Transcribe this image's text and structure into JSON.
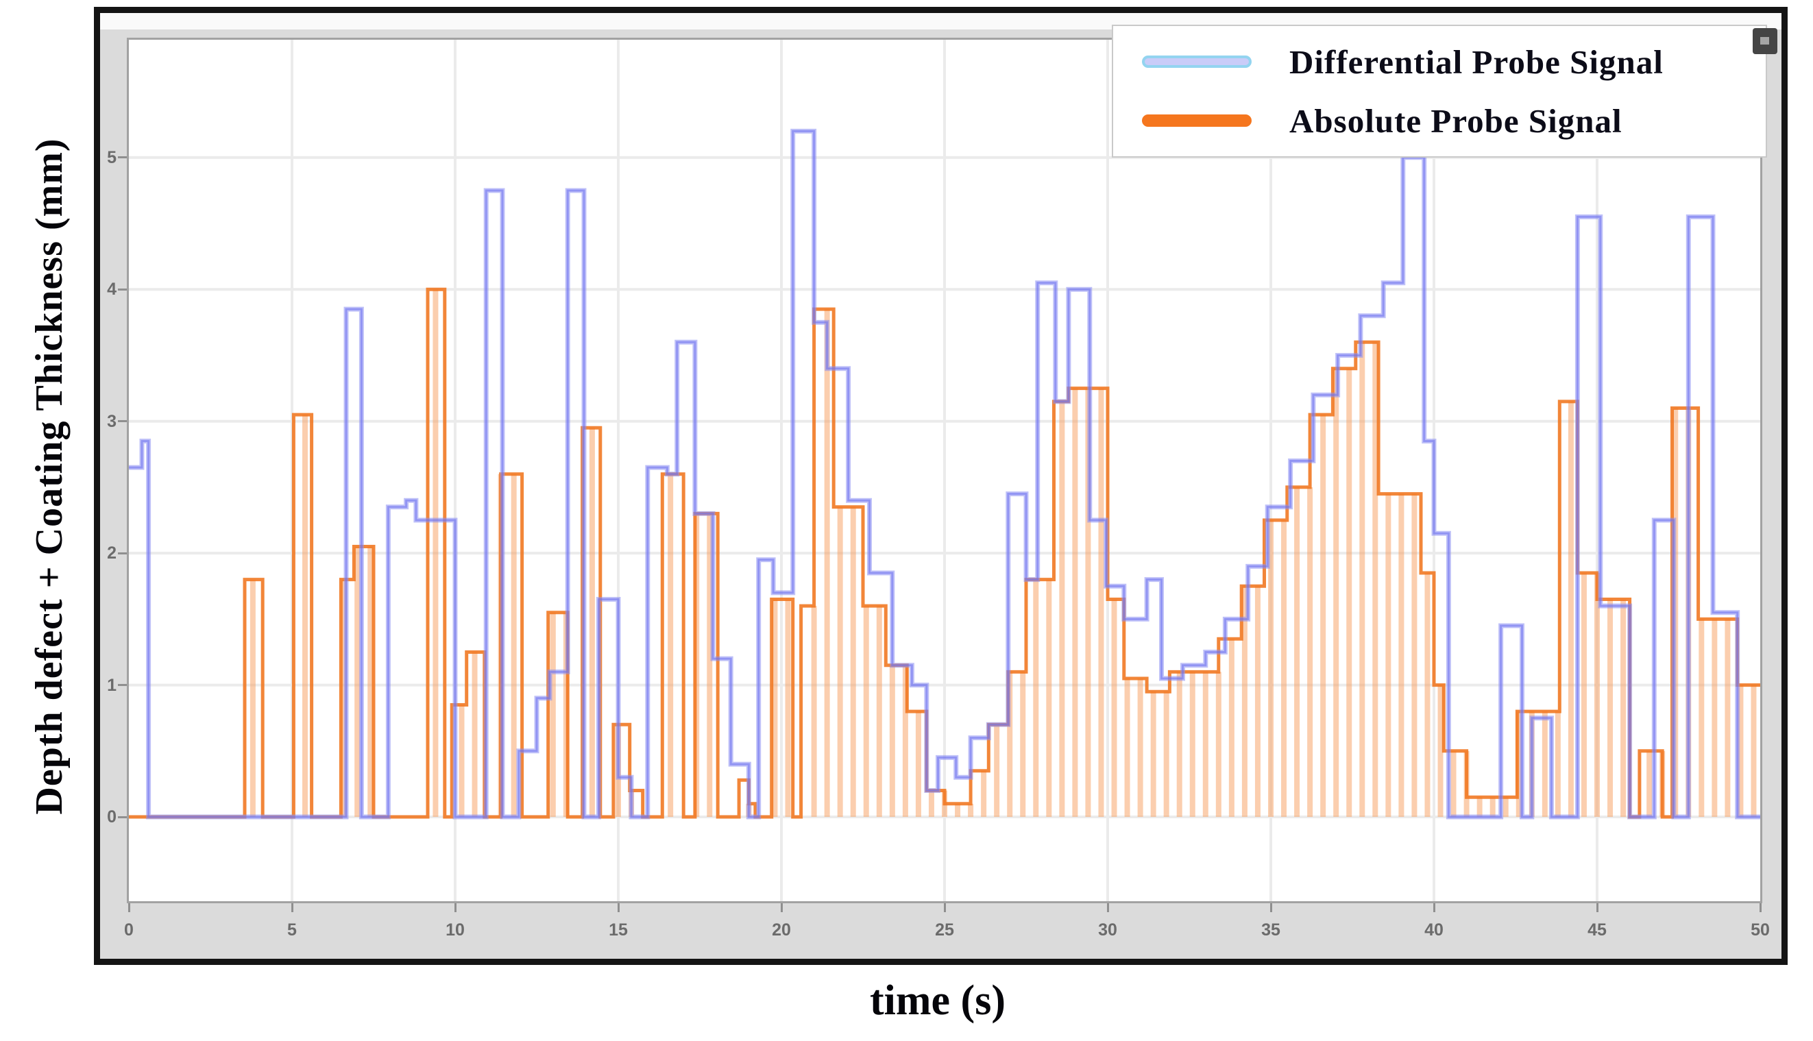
{
  "figure": {
    "window_icon": "resize-grip-icon",
    "background": "#dbdbdb",
    "border_color": "#141414",
    "plot_background": "#ffffff",
    "frame_color": "#a2a2a2",
    "grid_color": "#ebebeb",
    "tick_color": "#8f8f8f",
    "tick_text_color": "#6b6b6b"
  },
  "legend": {
    "position": "top-right",
    "entries": [
      {
        "label": "Differential Probe Signal",
        "swatch": "light-blue-line-swatch",
        "color": "#9aa0f2"
      },
      {
        "label": "Absolute Probe Signal",
        "swatch": "orange-line-swatch",
        "color": "#f5761e"
      }
    ]
  },
  "chart_data": {
    "type": "line",
    "subtype": "step",
    "title": "",
    "xlabel": "time (s)",
    "ylabel": "Depth defect + Coating Thickness (mm)",
    "xlim": [
      0,
      50
    ],
    "ylim": [
      -0.639,
      5.893
    ],
    "x_ticks": [
      0,
      5,
      10,
      15,
      20,
      25,
      30,
      35,
      40,
      45,
      50
    ],
    "y_ticks": [
      0,
      1,
      2,
      3,
      4,
      5
    ],
    "grid": true,
    "legend_position": "top-right",
    "series": [
      {
        "name": "Differential Probe Signal",
        "style": "step-line",
        "color": "#8a8ef0",
        "points": [
          [
            0,
            2.65
          ],
          [
            0.4,
            2.85
          ],
          [
            0.6,
            0
          ],
          [
            6.66,
            3.85
          ],
          [
            7.13,
            0
          ],
          [
            7.95,
            2.35
          ],
          [
            8.5,
            2.4
          ],
          [
            8.8,
            2.25
          ],
          [
            10,
            0
          ],
          [
            10.95,
            4.75
          ],
          [
            11.45,
            0
          ],
          [
            11.95,
            0.5
          ],
          [
            12.5,
            0.9
          ],
          [
            12.9,
            1.1
          ],
          [
            13.45,
            4.75
          ],
          [
            13.95,
            0
          ],
          [
            14.4,
            1.65
          ],
          [
            15,
            0.3
          ],
          [
            15.4,
            0
          ],
          [
            15.9,
            2.65
          ],
          [
            16.5,
            2.6
          ],
          [
            16.8,
            3.6
          ],
          [
            17.35,
            2.3
          ],
          [
            17.9,
            1.2
          ],
          [
            18.45,
            0.4
          ],
          [
            19,
            0
          ],
          [
            19.3,
            1.95
          ],
          [
            19.75,
            1.7
          ],
          [
            20.35,
            5.2
          ],
          [
            21,
            3.75
          ],
          [
            21.4,
            3.4
          ],
          [
            22.05,
            2.4
          ],
          [
            22.7,
            1.85
          ],
          [
            23.4,
            1.15
          ],
          [
            24,
            1
          ],
          [
            24.45,
            0.2
          ],
          [
            24.8,
            0.45
          ],
          [
            25.35,
            0.3
          ],
          [
            25.8,
            0.6
          ],
          [
            26.35,
            0.7
          ],
          [
            26.95,
            2.45
          ],
          [
            27.5,
            1.8
          ],
          [
            27.85,
            4.05
          ],
          [
            28.4,
            3.15
          ],
          [
            28.8,
            4
          ],
          [
            29.45,
            2.25
          ],
          [
            29.95,
            1.75
          ],
          [
            30.5,
            1.5
          ],
          [
            31.2,
            1.8
          ],
          [
            31.65,
            1.05
          ],
          [
            32.3,
            1.15
          ],
          [
            33,
            1.25
          ],
          [
            33.6,
            1.5
          ],
          [
            34.3,
            1.9
          ],
          [
            34.9,
            2.35
          ],
          [
            35.6,
            2.7
          ],
          [
            36.3,
            3.2
          ],
          [
            37.05,
            3.5
          ],
          [
            37.75,
            3.8
          ],
          [
            38.45,
            4.05
          ],
          [
            39.05,
            5
          ],
          [
            39.7,
            2.85
          ],
          [
            40,
            2.15
          ],
          [
            40.45,
            0
          ],
          [
            42.05,
            1.45
          ],
          [
            42.7,
            0
          ],
          [
            43,
            0.75
          ],
          [
            43.6,
            0
          ],
          [
            44.4,
            4.55
          ],
          [
            45.1,
            1.6
          ],
          [
            46,
            0
          ],
          [
            46.75,
            2.25
          ],
          [
            47.35,
            0
          ],
          [
            47.8,
            4.55
          ],
          [
            48.55,
            1.55
          ],
          [
            49.3,
            0
          ],
          [
            50,
            0
          ]
        ]
      },
      {
        "name": "Absolute Probe Signal",
        "style": "step-comb",
        "color": "#f0751e",
        "comb_spacing": 0.4,
        "points": [
          [
            0,
            0
          ],
          [
            3.55,
            1.8
          ],
          [
            4.1,
            0
          ],
          [
            5.05,
            3.05
          ],
          [
            5.6,
            0
          ],
          [
            6.5,
            1.8
          ],
          [
            6.9,
            2.05
          ],
          [
            7.5,
            0
          ],
          [
            9.16,
            4
          ],
          [
            9.68,
            0
          ],
          [
            9.9,
            0.85
          ],
          [
            10.35,
            1.25
          ],
          [
            10.9,
            0
          ],
          [
            11.4,
            2.6
          ],
          [
            12.05,
            0
          ],
          [
            12.85,
            1.55
          ],
          [
            13.45,
            0
          ],
          [
            13.9,
            2.95
          ],
          [
            14.45,
            0
          ],
          [
            14.85,
            0.7
          ],
          [
            15.35,
            0.2
          ],
          [
            15.75,
            0
          ],
          [
            16.35,
            2.6
          ],
          [
            17,
            0
          ],
          [
            17.35,
            2.3
          ],
          [
            18.05,
            0
          ],
          [
            18.7,
            0.28
          ],
          [
            19,
            0.1
          ],
          [
            19.2,
            0
          ],
          [
            19.7,
            1.65
          ],
          [
            20.35,
            0
          ],
          [
            20.6,
            1.6
          ],
          [
            21,
            3.85
          ],
          [
            21.6,
            2.35
          ],
          [
            22.5,
            1.6
          ],
          [
            23.2,
            1.15
          ],
          [
            23.85,
            0.8
          ],
          [
            24.45,
            0.2
          ],
          [
            25,
            0.1
          ],
          [
            25.8,
            0.35
          ],
          [
            26.35,
            0.7
          ],
          [
            26.95,
            1.1
          ],
          [
            27.5,
            1.8
          ],
          [
            28.35,
            3.15
          ],
          [
            28.8,
            3.25
          ],
          [
            30,
            1.65
          ],
          [
            30.5,
            1.05
          ],
          [
            31.2,
            0.95
          ],
          [
            31.9,
            1.1
          ],
          [
            33.4,
            1.35
          ],
          [
            34.1,
            1.75
          ],
          [
            34.8,
            2.25
          ],
          [
            35.5,
            2.5
          ],
          [
            36.2,
            3.05
          ],
          [
            36.9,
            3.4
          ],
          [
            37.6,
            3.6
          ],
          [
            38.3,
            2.45
          ],
          [
            39.6,
            1.85
          ],
          [
            40,
            1
          ],
          [
            40.3,
            0.5
          ],
          [
            41,
            0.15
          ],
          [
            42.55,
            0.8
          ],
          [
            43.85,
            3.15
          ],
          [
            44.4,
            1.85
          ],
          [
            45,
            1.65
          ],
          [
            46,
            0
          ],
          [
            46.3,
            0.5
          ],
          [
            47,
            0
          ],
          [
            47.3,
            3.1
          ],
          [
            48.1,
            1.5
          ],
          [
            49.3,
            1
          ],
          [
            50,
            1
          ]
        ]
      }
    ]
  }
}
